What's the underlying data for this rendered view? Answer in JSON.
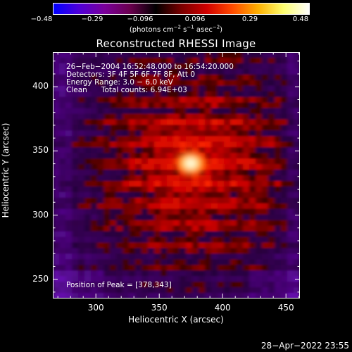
{
  "colorbar": {
    "ticks": [
      "−0.48",
      "−0.29",
      "−0.096",
      "0.096",
      "0.29",
      "0.48"
    ],
    "units_prefix": "(photons cm",
    "units_exp1": "−2",
    "units_mid1": " s",
    "units_exp2": "−1",
    "units_mid2": " asec",
    "units_exp3": "−2",
    "units_suffix": ")",
    "colors": [
      "#0000ff",
      "#4f00d8",
      "#7a009a",
      "#6a004e",
      "#000000",
      "#7a0000",
      "#d00000",
      "#ff4a00",
      "#ffb000",
      "#ffff70",
      "#ffffff"
    ]
  },
  "title": "Reconstructed RHESSI Image",
  "info": {
    "line1": "26−Feb−2004 16:52:48.000 to 16:54:20.000",
    "line2": "Detectors: 3F 4F 5F 6F 7F 8F, Att 0",
    "line3": "Energy Range: 3.0 − 6.0 keV",
    "line4": "Clean      Total counts: 6.94E+03",
    "peak": "Position of Peak = [378,343]"
  },
  "axes": {
    "xlabel": "Heliocentric X (arcsec)",
    "ylabel": "Heliocentric Y (arcsec)",
    "xticks": [
      "300",
      "350",
      "400",
      "450"
    ],
    "yticks": [
      "250",
      "300",
      "350",
      "400"
    ],
    "xlim": [
      266,
      461
    ],
    "ylim": [
      235,
      427
    ]
  },
  "timestamp": "28−Apr−2022 23:55"
}
